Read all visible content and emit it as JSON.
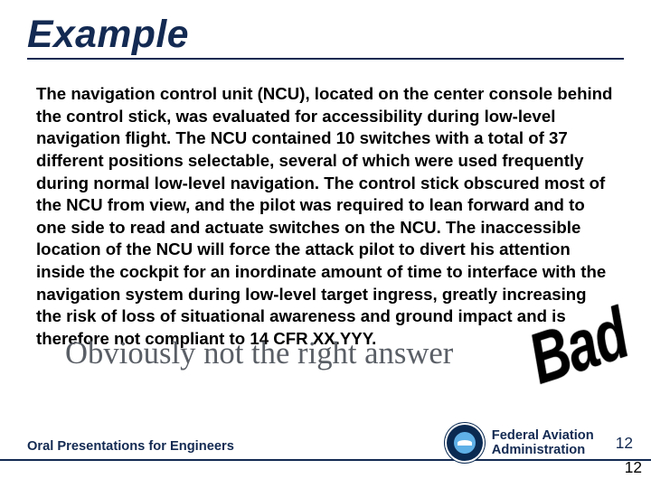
{
  "title": {
    "text": "Example",
    "color": "#132a52",
    "fontsize_pt": 32
  },
  "rule_color": "#132a52",
  "body": {
    "text": "The navigation control unit (NCU), located on the center console behind the control stick, was evaluated for accessibility during low-level navigation flight.  The NCU contained 10 switches with a total of 37 different positions selectable, several of which were used frequently during normal low-level navigation. The control stick obscured most of the NCU from view, and the pilot was required to lean forward and to one side to read and actuate switches on the NCU. The inaccessible location of the NCU will force the attack pilot to divert his attention inside the cockpit for an inordinate amount of time to interface with the navigation system during low-level target ingress, greatly increasing the risk of loss of situational awareness and ground impact and is therefore not compliant to 14 CFR XX.YYY.",
    "fontsize_pt": 14,
    "color": "#000000"
  },
  "subtitle": {
    "text": "Obviously not the right answer",
    "color": "#5a5f66",
    "fontsize_pt": 26
  },
  "stamp": {
    "text": "Bad",
    "color": "#000000",
    "fontsize_pt": 44,
    "rotation_deg": -18
  },
  "footer": {
    "left_text": "Oral Presentations for Engineers",
    "left_fontsize_pt": 11,
    "right_org_line1": "Federal Aviation",
    "right_org_line2": "Administration",
    "right_fontsize_pt": 11,
    "page_number": "12",
    "page_number_dup": "12",
    "page_number_fontsize_pt": 13,
    "seal_bg": "#0a2a52",
    "text_color": "#132a52",
    "bar_color": "#132a52"
  },
  "background_color": "#ffffff"
}
